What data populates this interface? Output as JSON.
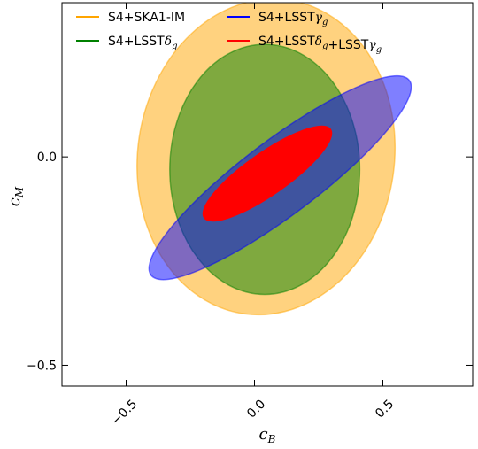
{
  "chart_data": {
    "type": "scatter",
    "subtype": "confidence-ellipses",
    "xlabel": "c",
    "xlabel_sub": "B",
    "ylabel": "c",
    "ylabel_sub": "M",
    "xlim": [
      -0.75,
      0.85
    ],
    "ylim": [
      -0.55,
      0.37
    ],
    "xticks": [
      -0.5,
      0.0,
      0.5
    ],
    "xtick_labels": [
      "−0.5",
      "0.0",
      "0.5"
    ],
    "yticks": [
      -0.5,
      0.0
    ],
    "ytick_labels": [
      "−0.5",
      "0.0"
    ],
    "grid": false,
    "legend_placement": "top",
    "series": [
      {
        "name": "S4+SKA1-IM",
        "color": "#FFA500",
        "alpha": 0.5,
        "center": [
          0.045,
          0.0
        ],
        "semi_x": 0.5,
        "semi_y": 0.38,
        "angle_deg": -8
      },
      {
        "name": "S4+LSSTδg",
        "color": "#008000",
        "alpha": 0.5,
        "center": [
          0.04,
          -0.03
        ],
        "semi_x": 0.37,
        "semi_y": 0.3,
        "angle_deg": 0
      },
      {
        "name": "S4+LSSTγg",
        "color": "#0000FF",
        "alpha": 0.5,
        "center": [
          0.1,
          -0.05
        ],
        "semi_x": 0.63,
        "semi_y": 0.09,
        "angle_deg": 37
      },
      {
        "name": "S4+LSSTδg+LSSTγg",
        "color": "#FF0000",
        "alpha": 1.0,
        "center": [
          0.05,
          -0.04
        ],
        "semi_x": 0.3,
        "semi_y": 0.05,
        "angle_deg": 35
      }
    ],
    "legend": [
      {
        "base": "S4+SKA1-IM",
        "parts": [],
        "color": "#FFA500"
      },
      {
        "base": "S4+LSST",
        "parts": [
          "δ",
          "g"
        ],
        "color": "#008000"
      },
      {
        "base": "S4+LSST",
        "parts": [
          "γ",
          "g"
        ],
        "color": "#0000FF"
      },
      {
        "base": "S4+LSST",
        "parts": [
          "δ",
          "g",
          "+LSST",
          "γ",
          "g"
        ],
        "color": "#FF0000"
      }
    ]
  }
}
